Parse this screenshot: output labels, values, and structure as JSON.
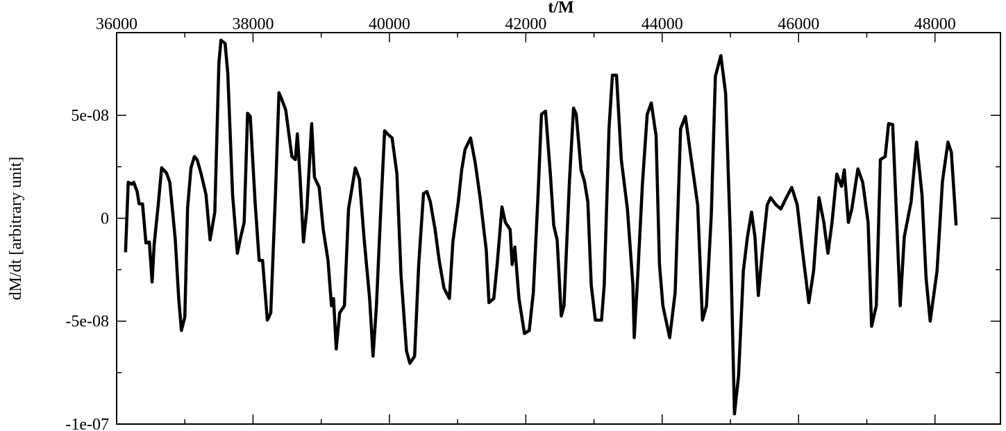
{
  "chart_data": {
    "type": "line",
    "xlabel": "t/M",
    "ylabel": "dM/dt [arbitrary unit]",
    "xlim": [
      36000,
      48960
    ],
    "xticks": [
      36000,
      38000,
      40000,
      42000,
      44000,
      46000,
      48000
    ],
    "ylim": [
      -1e-07,
      9.02e-08
    ],
    "yticks": [
      {
        "value": -1e-07,
        "label": "-1e-07"
      },
      {
        "value": -5e-08,
        "label": "-5e-08"
      },
      0,
      {
        "value": 5e-08,
        "label": "5e-08"
      }
    ],
    "color": "#000000",
    "x": [
      36130,
      36170,
      36220,
      36250,
      36300,
      36330,
      36380,
      36430,
      36480,
      36520,
      36550,
      36610,
      36660,
      36730,
      36780,
      36860,
      36910,
      36950,
      37000,
      37040,
      37090,
      37140,
      37180,
      37240,
      37310,
      37370,
      37440,
      37500,
      37530,
      37590,
      37630,
      37700,
      37770,
      37820,
      37870,
      37920,
      37960,
      38030,
      38090,
      38140,
      38210,
      38260,
      38330,
      38380,
      38430,
      38480,
      38570,
      38620,
      38650,
      38690,
      38740,
      38790,
      38860,
      38900,
      38970,
      39030,
      39100,
      39150,
      39180,
      39220,
      39270,
      39340,
      39400,
      39500,
      39560,
      39630,
      39710,
      39760,
      39810,
      39870,
      39930,
      39970,
      40040,
      40110,
      40170,
      40250,
      40300,
      40370,
      40430,
      40500,
      40550,
      40600,
      40670,
      40730,
      40800,
      40880,
      40930,
      41010,
      41060,
      41110,
      41190,
      41260,
      41330,
      41420,
      41460,
      41530,
      41580,
      41650,
      41700,
      41770,
      41800,
      41840,
      41900,
      41980,
      42050,
      42110,
      42180,
      42230,
      42290,
      42360,
      42410,
      42460,
      42520,
      42560,
      42640,
      42700,
      42740,
      42810,
      42860,
      42910,
      42960,
      43020,
      43110,
      43150,
      43220,
      43270,
      43330,
      43400,
      43490,
      43570,
      43590,
      43640,
      43710,
      43780,
      43840,
      43910,
      43960,
      44010,
      44110,
      44190,
      44270,
      44340,
      44420,
      44520,
      44590,
      44650,
      44720,
      44780,
      44860,
      44930,
      45000,
      45060,
      45120,
      45190,
      45250,
      45310,
      45360,
      45410,
      45470,
      45540,
      45590,
      45670,
      45740,
      45820,
      45900,
      45980,
      46050,
      46150,
      46220,
      46300,
      46370,
      46430,
      46490,
      46560,
      46630,
      46670,
      46730,
      46780,
      46870,
      46940,
      47020,
      47070,
      47140,
      47200,
      47270,
      47320,
      47380,
      47440,
      47490,
      47550,
      47650,
      47730,
      47810,
      47870,
      47930,
      48030,
      48110,
      48190,
      48240,
      48310
    ],
    "values": [
      -1.65e-08,
      1.75e-08,
      1.65e-08,
      1.75e-08,
      1.3e-08,
      7e-09,
      7e-09,
      -1.2e-08,
      -1.15e-08,
      -3.1e-08,
      -1.3e-08,
      6.5e-09,
      2.45e-08,
      2.2e-08,
      1.75e-08,
      -1.05e-08,
      -3.9e-08,
      -5.45e-08,
      -4.8e-08,
      5e-09,
      2.45e-08,
      3e-08,
      2.85e-08,
      2.15e-08,
      1.15e-08,
      -1.05e-08,
      3e-09,
      7.55e-08,
      8.65e-08,
      8.5e-08,
      7.05e-08,
      1.15e-08,
      -1.7e-08,
      -9e-09,
      -2e-09,
      5.1e-08,
      4.95e-08,
      8e-09,
      -2.05e-08,
      -2.05e-08,
      -4.95e-08,
      -4.6e-08,
      1.3e-08,
      6.1e-08,
      5.7e-08,
      5.25e-08,
      3e-08,
      2.85e-08,
      4.1e-08,
      2e-08,
      -1.15e-08,
      4.5e-09,
      4.6e-08,
      2e-08,
      1.5e-08,
      -5.5e-09,
      -2.05e-08,
      -4.25e-08,
      -3.9e-08,
      -6.35e-08,
      -4.6e-08,
      -4.25e-08,
      4.5e-09,
      2.45e-08,
      1.9e-08,
      -1.05e-08,
      -3.9e-08,
      -6.7e-08,
      -4.25e-08,
      1.5e-09,
      4.25e-08,
      4.1e-08,
      3.9e-08,
      2.15e-08,
      -2.75e-08,
      -6.45e-08,
      -7.05e-08,
      -6.7e-08,
      -2.25e-08,
      1.2e-08,
      1.3e-08,
      8e-09,
      -5.5e-09,
      -2.05e-08,
      -3.4e-08,
      -3.9e-08,
      -1.15e-08,
      8e-09,
      2.35e-08,
      3.35e-08,
      3.9e-08,
      2.65e-08,
      1e-08,
      -1.55e-08,
      -4.1e-08,
      -3.9e-08,
      -2.25e-08,
      5.5e-09,
      -2e-09,
      -5.5e-09,
      -2.25e-08,
      -1.4e-08,
      -3.9e-08,
      -5.6e-08,
      -5.45e-08,
      -3.6e-08,
      1.15e-08,
      5.05e-08,
      5.2e-08,
      2.15e-08,
      -3.5e-09,
      -1.05e-08,
      -4.75e-08,
      -4.25e-08,
      1.8e-08,
      5.35e-08,
      5.05e-08,
      2.35e-08,
      1.8e-08,
      8e-09,
      -3.25e-08,
      -4.95e-08,
      -4.95e-08,
      -3.25e-08,
      4.35e-08,
      6.95e-08,
      6.95e-08,
      2.85e-08,
      4.5e-09,
      -3.25e-08,
      -5.8e-08,
      -2.9e-08,
      1.65e-08,
      5.05e-08,
      5.6e-08,
      4e-08,
      -2.25e-08,
      -4.25e-08,
      -5.8e-08,
      -3.6e-08,
      4.35e-08,
      4.95e-08,
      3e-08,
      6.5e-09,
      -4.95e-08,
      -4.25e-08,
      1.5e-09,
      6.9e-08,
      7.9e-08,
      6.05e-08,
      -9e-09,
      -9.5e-08,
      -7.65e-08,
      -2.55e-08,
      -9e-09,
      3e-09,
      -9e-09,
      -3.75e-08,
      -1.55e-08,
      6.5e-09,
      1e-08,
      6.5e-09,
      4.5e-09,
      1e-08,
      1.5e-08,
      6.5e-09,
      -1.4e-08,
      -4.1e-08,
      -2.55e-08,
      1e-08,
      -2e-09,
      -1.7e-08,
      -2e-09,
      2.15e-08,
      1.55e-08,
      2.35e-08,
      -2e-09,
      4.5e-09,
      2.4e-08,
      1.75e-08,
      -2e-09,
      -5.25e-08,
      -4.25e-08,
      2.85e-08,
      3e-08,
      4.6e-08,
      4.55e-08,
      -2e-09,
      -4.25e-08,
      -9e-09,
      8e-09,
      3.7e-08,
      1.15e-08,
      -2.9e-08,
      -5e-08,
      -2.55e-08,
      1.8e-08,
      3.7e-08,
      3.2e-08,
      -3.5e-09
    ]
  }
}
